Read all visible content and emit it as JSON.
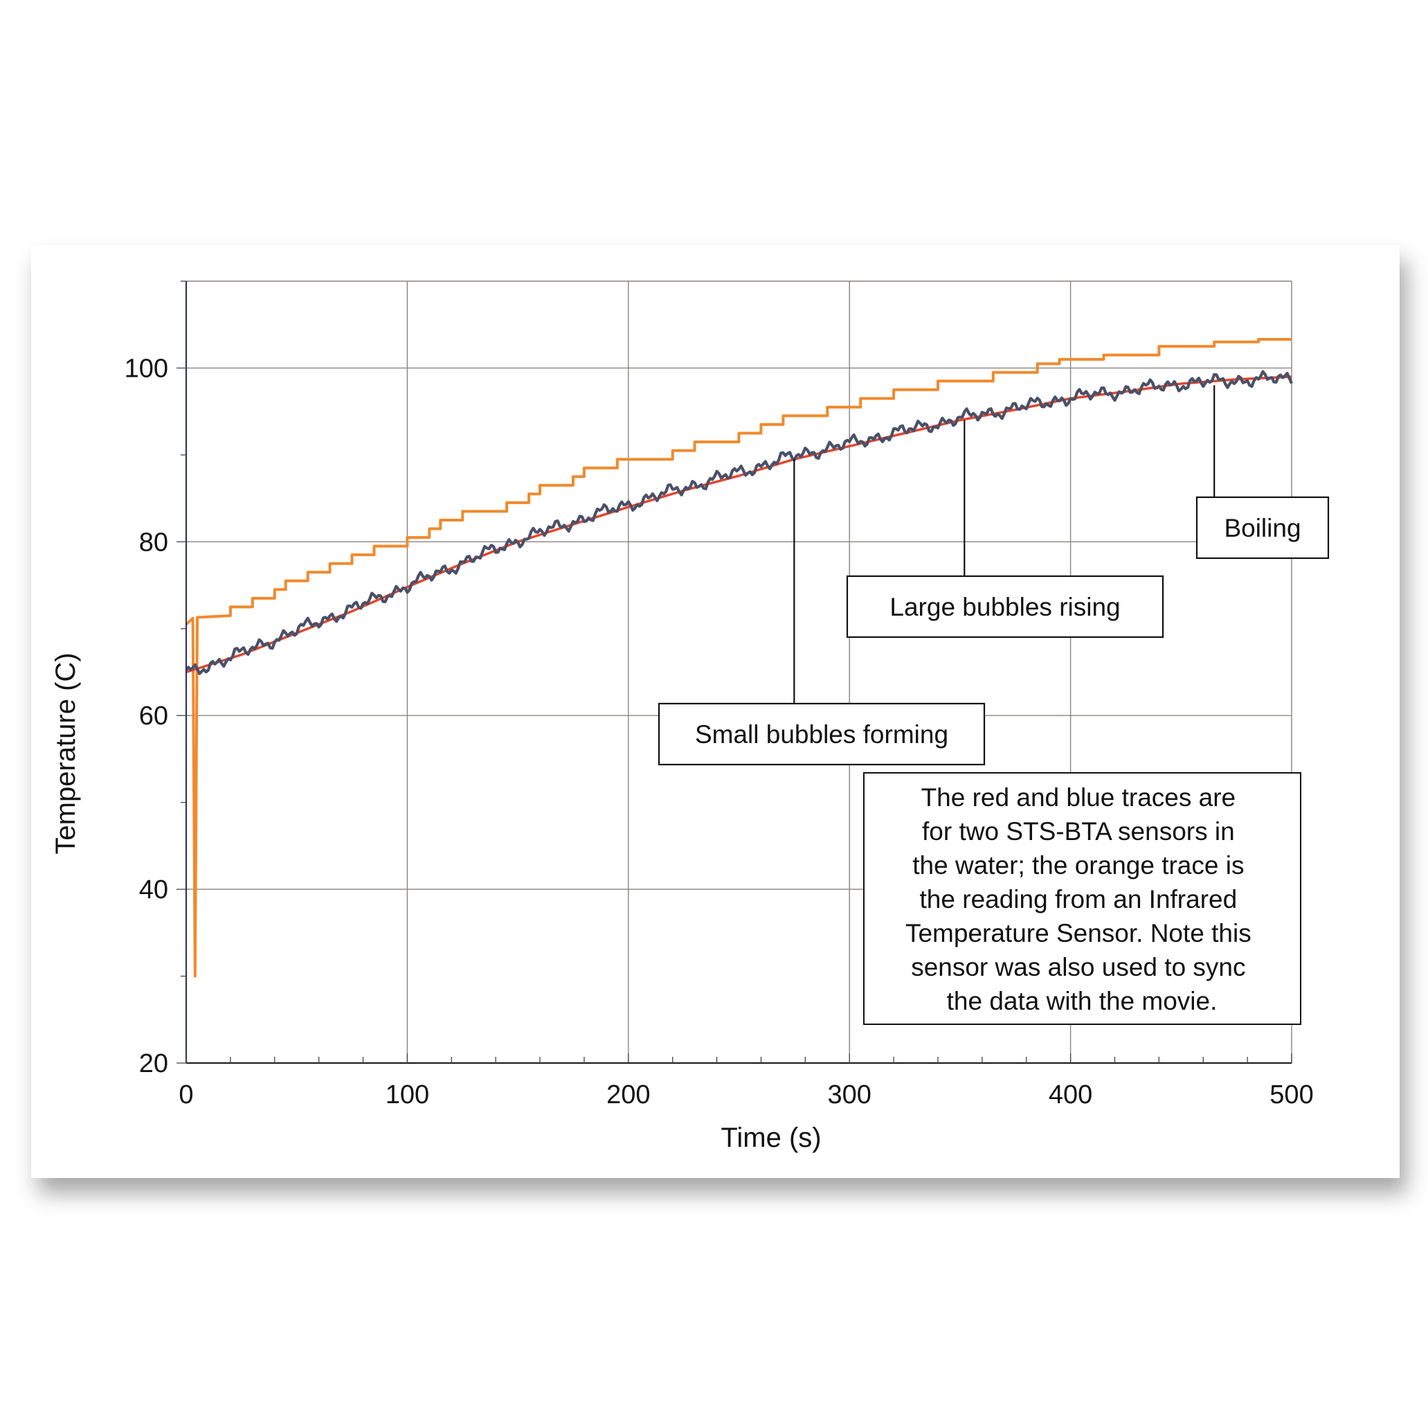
{
  "chart_data": {
    "type": "line",
    "xlabel": "Time (s)",
    "ylabel": "Temperature (C)",
    "xlim": [
      0,
      500
    ],
    "ylim": [
      20,
      110
    ],
    "x_ticks": [
      0,
      100,
      200,
      300,
      400,
      500
    ],
    "y_ticks": [
      20,
      40,
      60,
      80,
      100
    ],
    "grid": true,
    "series": [
      {
        "color": "#f08a2c",
        "kind": "step",
        "points": [
          [
            0,
            70.5
          ],
          [
            3,
            71.2
          ],
          [
            4,
            30
          ],
          [
            5,
            71.3
          ],
          [
            20,
            71.5
          ],
          [
            20,
            72.5
          ],
          [
            30,
            72.5
          ],
          [
            30,
            73.5
          ],
          [
            40,
            73.5
          ],
          [
            40,
            74.5
          ],
          [
            45,
            74.5
          ],
          [
            45,
            75.5
          ],
          [
            55,
            75.5
          ],
          [
            55,
            76.5
          ],
          [
            65,
            76.5
          ],
          [
            65,
            77.5
          ],
          [
            75,
            77.5
          ],
          [
            75,
            78.5
          ],
          [
            85,
            78.5
          ],
          [
            85,
            79.5
          ],
          [
            100,
            79.5
          ],
          [
            100,
            80.5
          ],
          [
            110,
            80.5
          ],
          [
            110,
            81.5
          ],
          [
            115,
            81.5
          ],
          [
            115,
            82.5
          ],
          [
            125,
            82.5
          ],
          [
            125,
            83.5
          ],
          [
            145,
            83.5
          ],
          [
            145,
            84.5
          ],
          [
            155,
            84.5
          ],
          [
            155,
            85.5
          ],
          [
            160,
            85.5
          ],
          [
            160,
            86.5
          ],
          [
            175,
            86.5
          ],
          [
            175,
            87.5
          ],
          [
            180,
            87.5
          ],
          [
            180,
            88.5
          ],
          [
            195,
            88.5
          ],
          [
            195,
            89.5
          ],
          [
            220,
            89.5
          ],
          [
            220,
            90.5
          ],
          [
            230,
            90.5
          ],
          [
            230,
            91.5
          ],
          [
            250,
            91.5
          ],
          [
            250,
            92.5
          ],
          [
            260,
            92.5
          ],
          [
            260,
            93.5
          ],
          [
            270,
            93.5
          ],
          [
            270,
            94.5
          ],
          [
            290,
            94.5
          ],
          [
            290,
            95.5
          ],
          [
            305,
            95.5
          ],
          [
            305,
            96.5
          ],
          [
            320,
            96.5
          ],
          [
            320,
            97.5
          ],
          [
            340,
            97.5
          ],
          [
            340,
            98.5
          ],
          [
            365,
            98.5
          ],
          [
            365,
            99.5
          ],
          [
            385,
            99.5
          ],
          [
            385,
            100.5
          ],
          [
            395,
            100.5
          ],
          [
            395,
            101
          ],
          [
            415,
            101
          ],
          [
            415,
            101.5
          ],
          [
            440,
            101.5
          ],
          [
            440,
            102.5
          ],
          [
            465,
            102.5
          ],
          [
            465,
            103
          ],
          [
            485,
            103
          ],
          [
            485,
            103.3
          ],
          [
            500,
            103.3
          ]
        ]
      },
      {
        "color": "#e5452c",
        "kind": "smooth",
        "points": [
          [
            0,
            65
          ],
          [
            25,
            67
          ],
          [
            50,
            69.5
          ],
          [
            75,
            72
          ],
          [
            100,
            74.8
          ],
          [
            125,
            77.5
          ],
          [
            150,
            80
          ],
          [
            175,
            82
          ],
          [
            200,
            84
          ],
          [
            225,
            85.9
          ],
          [
            250,
            87.6
          ],
          [
            275,
            89.5
          ],
          [
            300,
            91
          ],
          [
            325,
            92.5
          ],
          [
            350,
            94
          ],
          [
            375,
            95.2
          ],
          [
            400,
            96.5
          ],
          [
            425,
            97.3
          ],
          [
            450,
            98.2
          ],
          [
            475,
            98.7
          ],
          [
            500,
            99
          ]
        ]
      },
      {
        "color": "#4a5068",
        "kind": "noisy",
        "points": [
          [
            0,
            64.8
          ],
          [
            25,
            67.2
          ],
          [
            50,
            69.8
          ],
          [
            75,
            72.3
          ],
          [
            100,
            74.9
          ],
          [
            125,
            77.6
          ],
          [
            150,
            80.2
          ],
          [
            175,
            82.3
          ],
          [
            200,
            84.3
          ],
          [
            225,
            86.2
          ],
          [
            250,
            88
          ],
          [
            275,
            89.9
          ],
          [
            300,
            91.3
          ],
          [
            325,
            92.8
          ],
          [
            350,
            94.2
          ],
          [
            375,
            95.4
          ],
          [
            400,
            96.6
          ],
          [
            425,
            97.4
          ],
          [
            450,
            98.2
          ],
          [
            475,
            98.6
          ],
          [
            500,
            98.8
          ]
        ]
      }
    ],
    "annotations": [
      {
        "text": "Small bubbles forming",
        "x": 275,
        "y": 90
      },
      {
        "text": "Large bubbles rising",
        "x": 352,
        "y": 94.5
      },
      {
        "text": "Boiling",
        "x": 465,
        "y": 98.5
      }
    ],
    "note_lines": [
      "The red and blue traces are",
      "for two STS-BTA sensors in",
      "the water; the orange trace is",
      "the reading from an Infrared",
      "Temperature Sensor. Note this",
      "sensor was also used to sync",
      "the data with the movie."
    ]
  }
}
